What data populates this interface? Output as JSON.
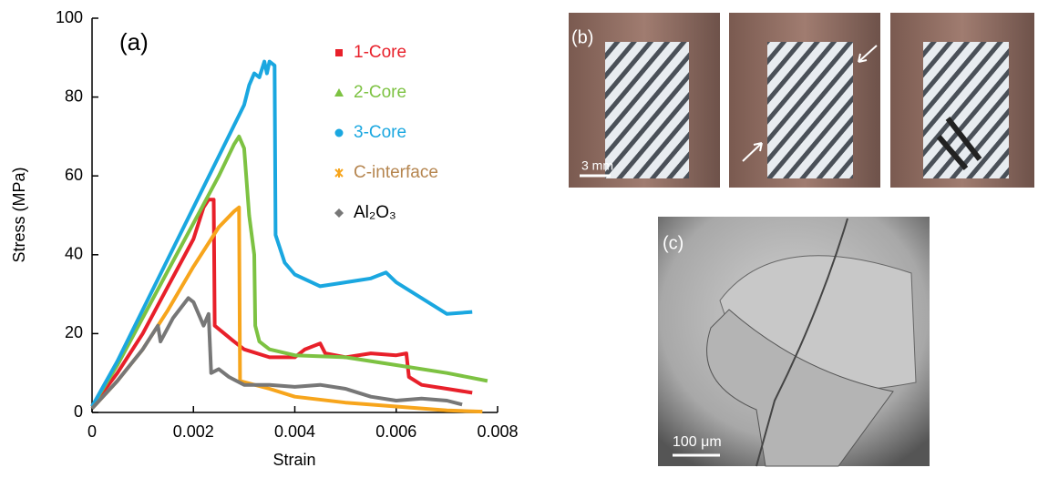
{
  "chart_data": {
    "type": "line",
    "annotations": [
      "(a)"
    ],
    "xlabel": "Strain",
    "ylabel": "Stress (MPa)",
    "xlim": [
      0,
      0.008
    ],
    "xticks": [
      0,
      0.002,
      0.004,
      0.006,
      0.008
    ],
    "ylim": [
      0,
      100
    ],
    "yticks": [
      0,
      20,
      40,
      60,
      80,
      100
    ],
    "series": [
      {
        "name": "1-Core",
        "color": "#e8202a",
        "legend_color": "#e8202a",
        "x": [
          0,
          0.0005,
          0.001,
          0.0015,
          0.002,
          0.0022,
          0.0023,
          0.0024,
          0.00242,
          0.0028,
          0.003,
          0.0035,
          0.004,
          0.0042,
          0.0045,
          0.0046,
          0.005,
          0.0055,
          0.006,
          0.0062,
          0.00625,
          0.0065,
          0.007,
          0.0075
        ],
        "values": [
          1.5,
          10,
          20,
          32,
          44,
          52,
          54,
          54,
          22,
          18,
          16,
          14,
          14,
          16,
          17.5,
          15,
          14,
          15,
          14.5,
          15,
          9,
          7,
          6,
          5
        ]
      },
      {
        "name": "2-Core",
        "color": "#7dc242",
        "legend_color": "#7dc242",
        "x": [
          0,
          0.0005,
          0.001,
          0.0015,
          0.002,
          0.0025,
          0.0028,
          0.0029,
          0.003,
          0.0031,
          0.0032,
          0.00322,
          0.0033,
          0.0035,
          0.004,
          0.005,
          0.006,
          0.007,
          0.0078
        ],
        "values": [
          1.5,
          12,
          24,
          36,
          48,
          60,
          68,
          70,
          67,
          50,
          40,
          22,
          18,
          16,
          14.5,
          14,
          12,
          10,
          8
        ]
      },
      {
        "name": "3-Core",
        "color": "#1aa7e0",
        "legend_color": "#1aa7e0",
        "x": [
          0,
          0.0005,
          0.001,
          0.0015,
          0.002,
          0.0025,
          0.003,
          0.0031,
          0.0032,
          0.0033,
          0.0034,
          0.00345,
          0.0035,
          0.0036,
          0.00362,
          0.0038,
          0.004,
          0.0045,
          0.005,
          0.0055,
          0.0058,
          0.006,
          0.0065,
          0.007,
          0.0075
        ],
        "values": [
          1.5,
          13,
          26,
          39,
          52,
          65,
          78,
          83,
          86,
          85,
          89,
          86,
          89,
          88,
          45,
          38,
          35,
          32,
          33,
          34,
          35.5,
          33,
          29,
          25,
          25.5
        ]
      },
      {
        "name": "C-interface",
        "color": "#f7a51c",
        "legend_color": "#b5854f",
        "x": [
          0,
          0.0005,
          0.001,
          0.0015,
          0.002,
          0.0025,
          0.0028,
          0.0029,
          0.00292,
          0.0035,
          0.004,
          0.005,
          0.006,
          0.007,
          0.0077
        ],
        "values": [
          1,
          8,
          16,
          26,
          37,
          47,
          51,
          52,
          8,
          6,
          4,
          2.5,
          1.5,
          0.5,
          0.2
        ]
      },
      {
        "name": "Al₂O₃",
        "color": "#777777",
        "legend_color": "#000000",
        "x": [
          0,
          0.0005,
          0.001,
          0.0013,
          0.00135,
          0.0016,
          0.0019,
          0.002,
          0.0022,
          0.0023,
          0.00235,
          0.0025,
          0.0027,
          0.003,
          0.0035,
          0.004,
          0.0045,
          0.005,
          0.0055,
          0.006,
          0.0065,
          0.007,
          0.0073
        ],
        "values": [
          1,
          8,
          16,
          22,
          18,
          24,
          29,
          28,
          22,
          25,
          10,
          11,
          9,
          7,
          7,
          6.5,
          7,
          6,
          4,
          3,
          3.5,
          3,
          2
        ]
      }
    ]
  },
  "panels": {
    "b": {
      "label": "(b)",
      "scale": "3 mm"
    },
    "c": {
      "label": "(c)",
      "scale": "100 μm"
    }
  }
}
